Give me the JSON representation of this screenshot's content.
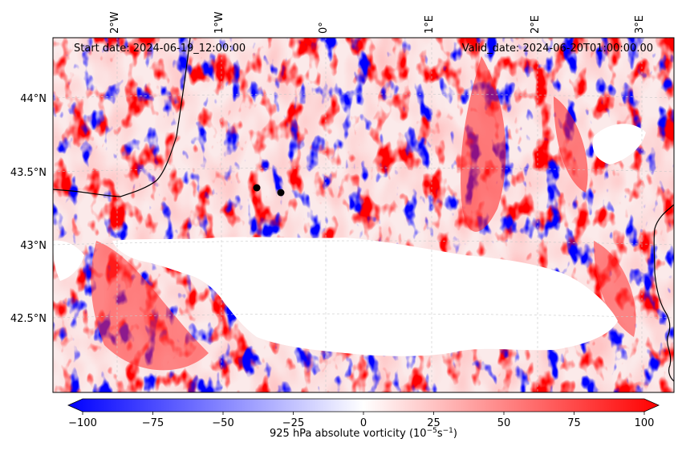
{
  "map": {
    "start_date_text": "Start date: 2024-06-19_12:00:00",
    "valid_date_text": "Valid_date: 2024-06-20T01:00:00.00",
    "lon_labels": [
      "2°W",
      "1°W",
      "0°",
      "1°E",
      "2°E",
      "3°E"
    ],
    "lat_labels": [
      "44°N",
      "43.5°N",
      "43°N",
      "42.5°N"
    ],
    "colors": {
      "negative": "#0000ff",
      "neutral": "#ffffff",
      "positive": "#ff0000",
      "coastline": "#000000",
      "gridline": "#c8c8c8",
      "marker": "#000000"
    }
  },
  "colorbar": {
    "ticks": [
      "−100",
      "−75",
      "−50",
      "−25",
      "0",
      "25",
      "50",
      "75",
      "100"
    ],
    "min": -100,
    "max": 100,
    "label_prefix": "925 hPa absolute vorticity (10",
    "label_exp1": "−5",
    "label_mid": "s",
    "label_exp2": "−1",
    "label_suffix": ")"
  }
}
